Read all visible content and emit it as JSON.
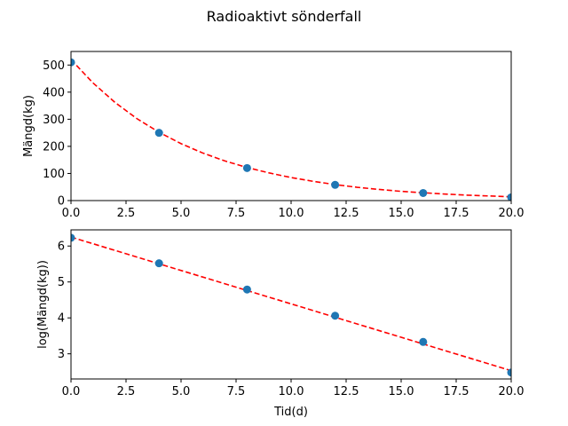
{
  "chart_data": {
    "title": "Radioaktivt sönderfall",
    "type": "scatter",
    "subplots": [
      {
        "type": "scatter",
        "xlabel": "",
        "ylabel": "Mängd(kg)",
        "xlim": [
          0,
          20
        ],
        "ylim": [
          0,
          550
        ],
        "xticks": [
          "0.0",
          "2.5",
          "5.0",
          "7.5",
          "10.0",
          "12.5",
          "15.0",
          "17.5",
          "20.0"
        ],
        "yticks": [
          "0",
          "100",
          "200",
          "300",
          "400",
          "500"
        ],
        "grid": false,
        "points": {
          "x": [
            0,
            4,
            8,
            12,
            16,
            20
          ],
          "y": [
            510,
            250,
            120,
            58,
            28,
            12
          ],
          "color": "#1f77b4"
        },
        "fit": {
          "style": "dashed",
          "color": "#ff0000",
          "x": [
            0,
            1,
            2,
            3,
            4,
            5,
            6,
            7,
            8,
            9,
            10,
            11,
            12,
            13,
            14,
            15,
            16,
            17,
            18,
            19,
            20
          ],
          "y": [
            520,
            434,
            362,
            302,
            252,
            210,
            175,
            146,
            122,
            102,
            85,
            71,
            59,
            49,
            41,
            34,
            29,
            24,
            20,
            17,
            14
          ]
        }
      },
      {
        "type": "scatter",
        "xlabel": "Tid(d)",
        "ylabel": "log(Mängd(kg))",
        "xlim": [
          0,
          20
        ],
        "ylim": [
          2.3,
          6.45
        ],
        "xticks": [
          "0.0",
          "2.5",
          "5.0",
          "7.5",
          "10.0",
          "12.5",
          "15.0",
          "17.5",
          "20.0"
        ],
        "yticks": [
          "3",
          "4",
          "5",
          "6"
        ],
        "grid": false,
        "points": {
          "x": [
            0,
            4,
            8,
            12,
            16,
            20
          ],
          "y": [
            6.23,
            5.52,
            4.79,
            4.06,
            3.33,
            2.48
          ],
          "color": "#1f77b4"
        },
        "fit": {
          "style": "dashed",
          "color": "#ff0000",
          "x": [
            0,
            20
          ],
          "y": [
            6.25,
            2.53
          ]
        }
      }
    ]
  }
}
